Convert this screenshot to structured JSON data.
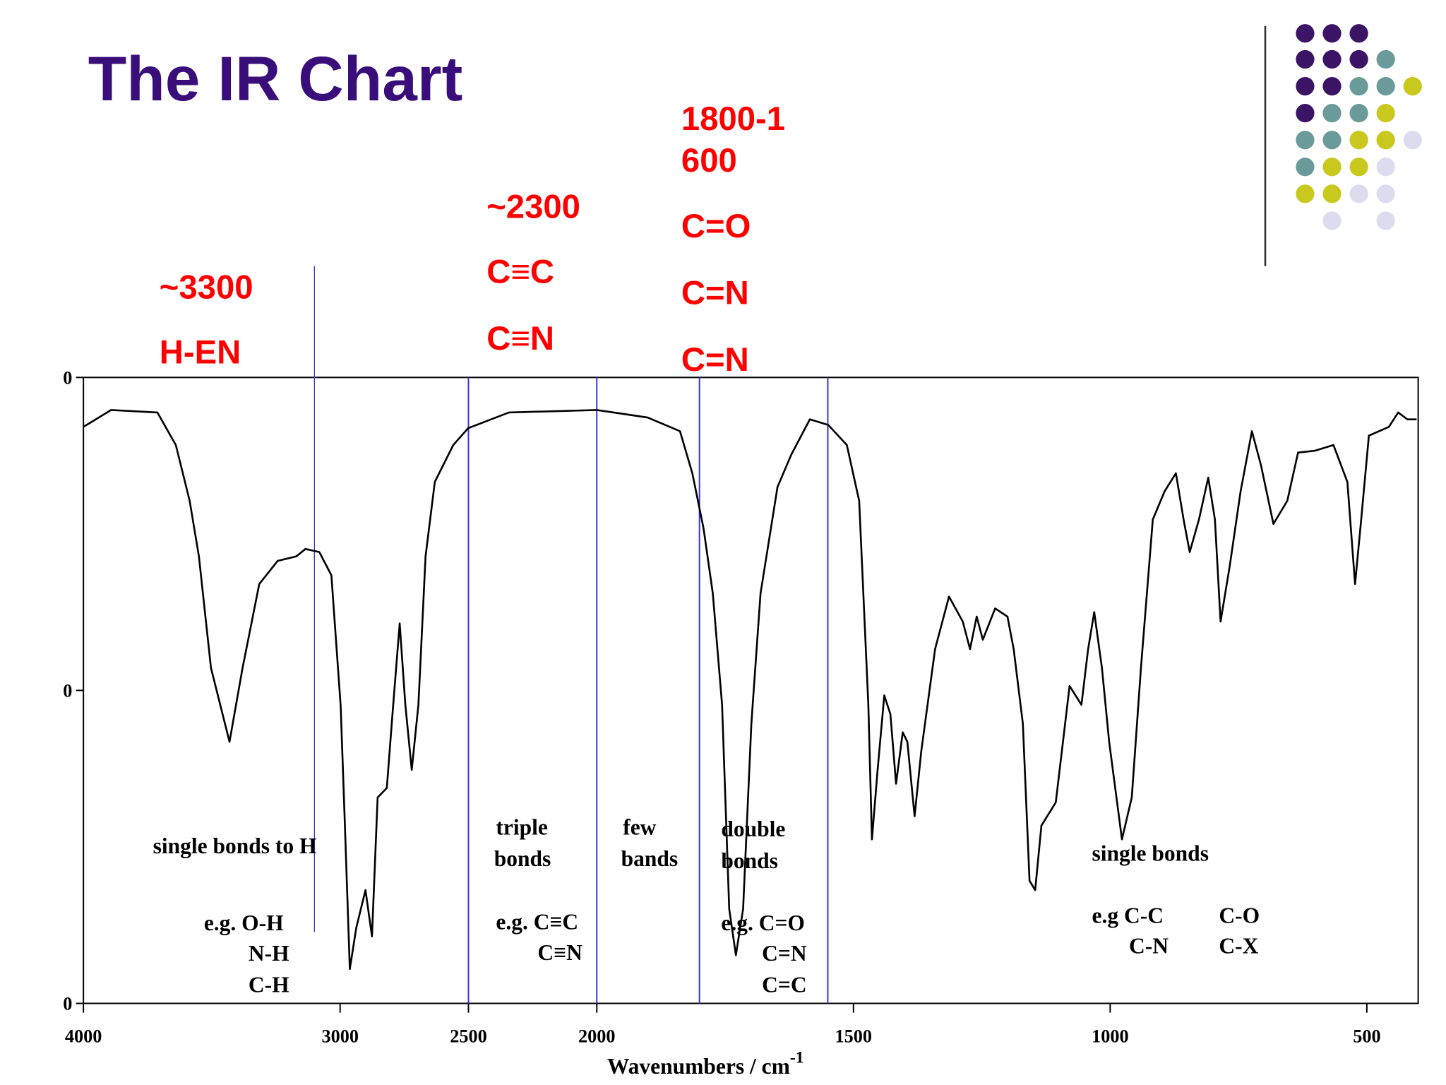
{
  "title": "The IR Chart",
  "chart_data": {
    "type": "line",
    "xlabel": "Wavenumbers / cm",
    "xlabel_sup": "-1",
    "x": [
      4000,
      3892,
      3712,
      3640,
      3586,
      3550,
      3503,
      3431,
      3380,
      3315,
      3243,
      3171,
      3135,
      3081,
      3034,
      2998,
      2984,
      2962,
      2937,
      2901,
      2876,
      2854,
      2818,
      2793,
      2768,
      2746,
      2721,
      2695,
      2667,
      2631,
      2559,
      2501,
      2342,
      2000,
      1901,
      1838,
      1814,
      1792,
      1774,
      1756,
      1742,
      1729,
      1715,
      1699,
      1681,
      1648,
      1621,
      1585,
      1549,
      1513,
      1489,
      1471,
      1464,
      1453,
      1440,
      1428,
      1417,
      1404,
      1395,
      1381,
      1368,
      1341,
      1314,
      1287,
      1273,
      1260,
      1248,
      1224,
      1200,
      1188,
      1170,
      1157,
      1146,
      1134,
      1106,
      1079,
      1056,
      1043,
      1031,
      1016,
      1002,
      977,
      958,
      940,
      917,
      894,
      872,
      857,
      845,
      827,
      809,
      796,
      785,
      767,
      746,
      724,
      706,
      682,
      655,
      634,
      601,
      565,
      538,
      523,
      511,
      496,
      457,
      439,
      421,
      403
    ],
    "series": [
      {
        "color": "#000000",
        "values": [
          92.1,
          94.8,
          94.4,
          89.2,
          80.3,
          71.4,
          53.6,
          41.8,
          53.6,
          67,
          70.7,
          71.4,
          72.6,
          72.1,
          68.4,
          47.6,
          31.4,
          5.5,
          12.1,
          18.1,
          10.7,
          32.9,
          34.4,
          47.7,
          60.7,
          47.7,
          37.3,
          47.7,
          71.4,
          83.3,
          89.2,
          91.9,
          94.4,
          94.8,
          93.6,
          91.4,
          84.7,
          75.9,
          65.5,
          47.7,
          15.1,
          7.7,
          15.1,
          44.7,
          65.5,
          82.5,
          87.7,
          93.3,
          92.4,
          89.2,
          80.3,
          47.7,
          26.2,
          37.3,
          49.2,
          46.2,
          35.1,
          43.3,
          41.8,
          29.9,
          40.3,
          56.6,
          65,
          61,
          56.6,
          61.8,
          58.1,
          63.1,
          61.8,
          56.6,
          44.7,
          19.6,
          18.1,
          28.4,
          32.1,
          50.7,
          47.7,
          56.6,
          62.5,
          53.6,
          41.8,
          26.2,
          32.9,
          53.6,
          77.3,
          81.8,
          84.7,
          77.3,
          72.1,
          77.3,
          84,
          77.3,
          61,
          69.9,
          81.8,
          91.4,
          85.9,
          76.6,
          80.3,
          88,
          88.3,
          89.2,
          83.3,
          67,
          77.3,
          90.7,
          92.1,
          94.4,
          93.3,
          93.3
        ]
      }
    ],
    "xlim": [
      4000,
      400
    ],
    "xscale_change": 2000,
    "xticks": [
      4000,
      3000,
      2500,
      2000,
      1500,
      1000,
      500
    ],
    "ylim": [
      0,
      100
    ],
    "yticks": [
      {
        "value": 0,
        "label": "0"
      },
      {
        "value": 50,
        "label": "0"
      },
      {
        "value": 100,
        "label": "0"
      }
    ],
    "region_lines": {
      "color": "#3333dd",
      "values": [
        3100,
        2500,
        2000,
        1800,
        1550
      ]
    },
    "annotations": [
      "~3300",
      "H-EN",
      "~2300",
      "C≡C",
      "C≡N",
      "1800-1",
      "600",
      "C=O",
      "C=N",
      "C=N"
    ],
    "region_labels": [
      "single bonds to H",
      "e.g. O-H",
      "N-H",
      "C-H",
      "triple",
      "bonds",
      "e.g. C≡C",
      "C≡N",
      "few",
      "bands",
      "double",
      "bonds",
      "e.g. C=O",
      "C=N",
      "C=C",
      "single bonds",
      "e.g C-C",
      "C-N",
      "C-O",
      "C-X"
    ]
  }
}
